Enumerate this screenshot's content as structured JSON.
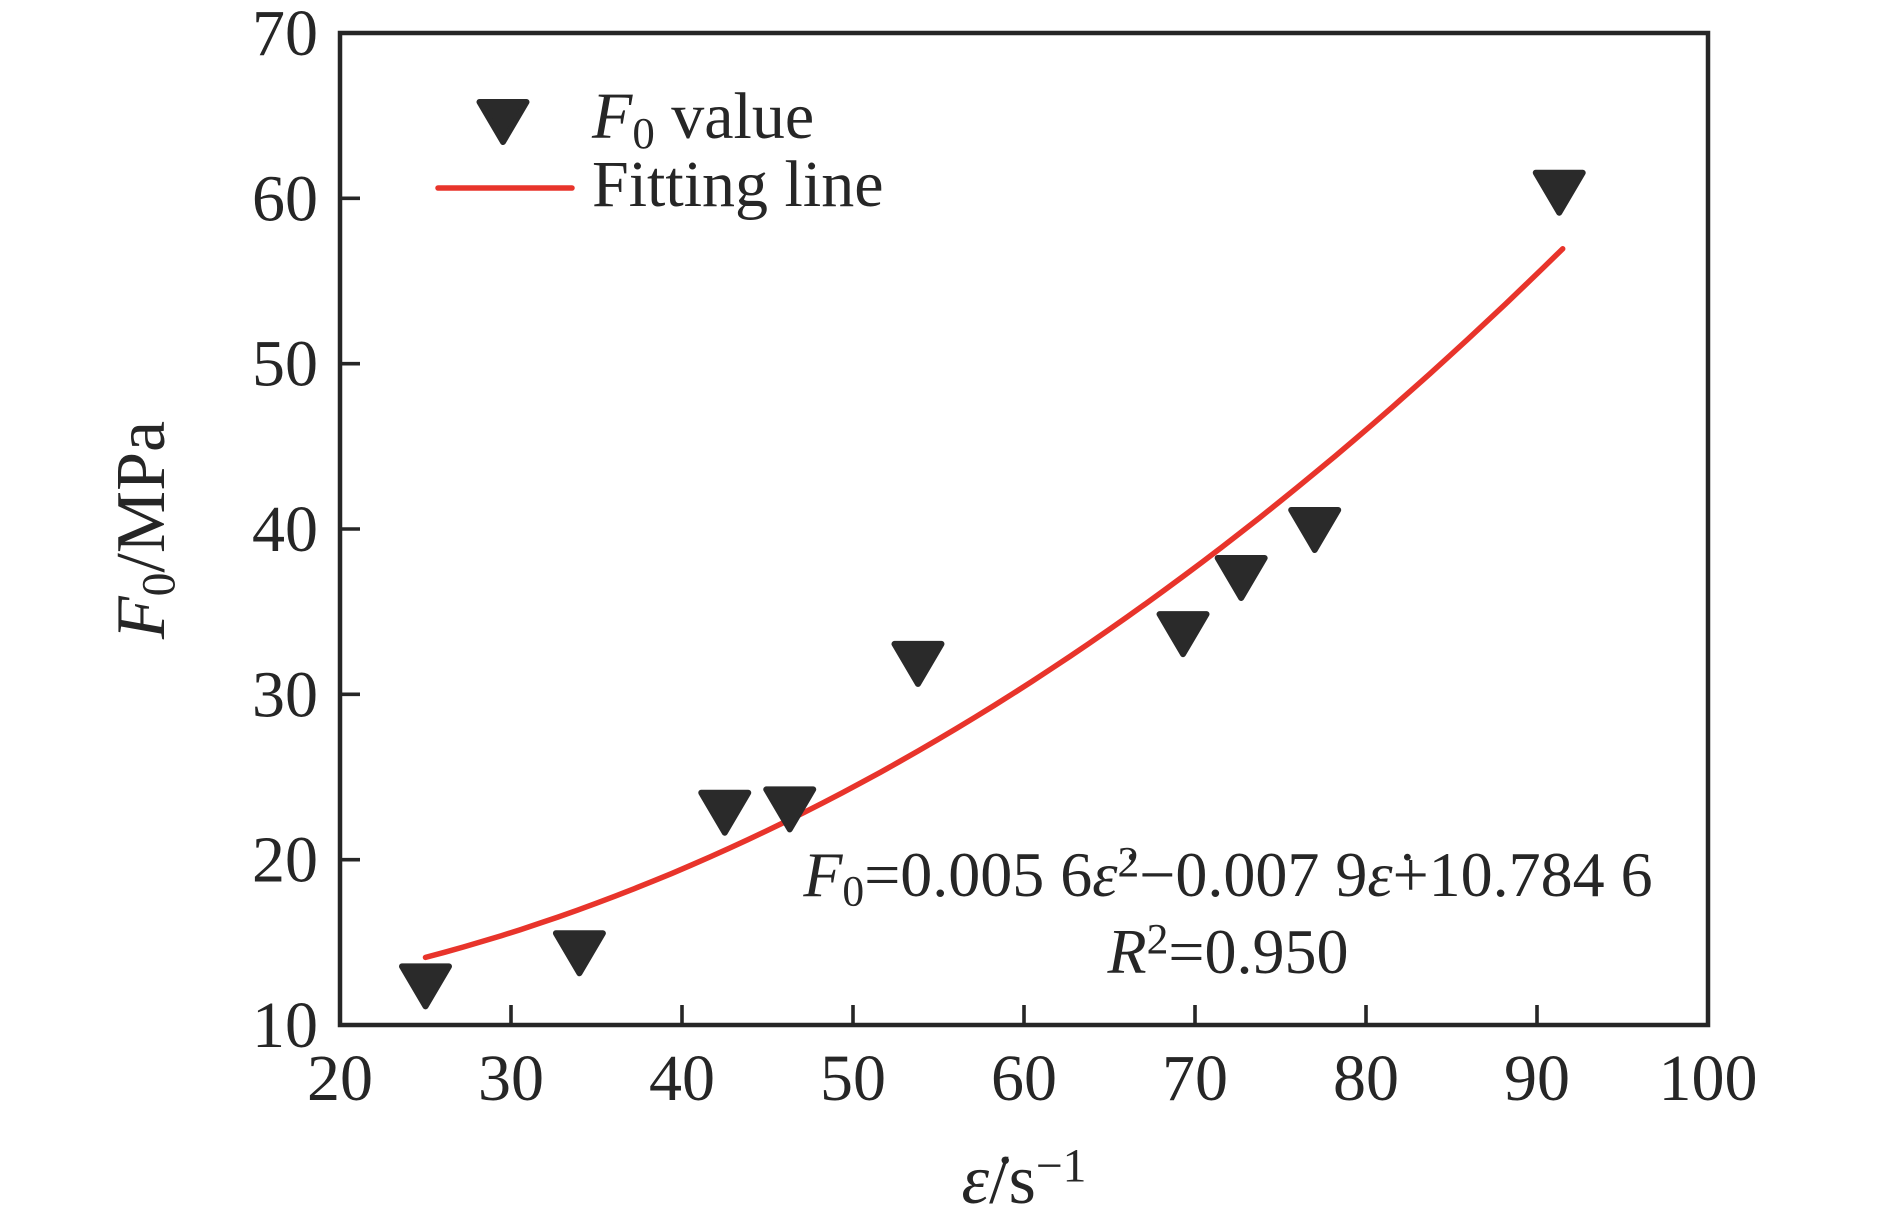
{
  "figure": {
    "background": "#ffffff"
  },
  "colors": {
    "axis": "#262626",
    "marker": "#2a2a2a",
    "fit_line": "#e8342b",
    "text": "#262626"
  },
  "labels": {
    "y_axis": [
      {
        "t": "F",
        "i": 1
      },
      {
        "t": "0",
        "sub": 1
      },
      {
        "t": "/MPa"
      }
    ],
    "x_axis": [
      {
        "t": "ε̇",
        "i": 1
      },
      {
        "t": "/s"
      },
      {
        "t": "−1",
        "sup": 1
      }
    ]
  },
  "legend": {
    "items": [
      {
        "marker": "triangle-down",
        "label": "F0 value",
        "runs": [
          {
            "t": "F",
            "i": 1
          },
          {
            "t": "0",
            "sub": 1
          },
          {
            "t": " value"
          }
        ]
      },
      {
        "marker": "red-line",
        "label": "Fitting line",
        "runs": [
          {
            "t": "Fitting line"
          }
        ]
      }
    ]
  },
  "annotation": {
    "line1_runs": [
      {
        "t": "F",
        "i": 1
      },
      {
        "t": "0",
        "sub": 1
      },
      {
        "t": "=0.005 6"
      },
      {
        "t": "ε̇",
        "i": 1
      },
      {
        "t": "2",
        "sup": 1
      },
      {
        "t": "−0.007 9"
      },
      {
        "t": "ε̇",
        "i": 1
      },
      {
        "t": "+10.784 6"
      }
    ],
    "line2_runs": [
      {
        "t": "R",
        "i": 1
      },
      {
        "t": "2",
        "sup": 1
      },
      {
        "t": "=0.950"
      }
    ]
  },
  "chart_data": {
    "type": "scatter",
    "title": "",
    "xlabel": "ε̇/s⁻¹",
    "ylabel": "F₀/MPa",
    "xlim": [
      20,
      100
    ],
    "ylim": [
      10,
      70
    ],
    "x_ticks": [
      20,
      30,
      40,
      50,
      60,
      70,
      80,
      90,
      100
    ],
    "y_ticks": [
      10,
      20,
      30,
      40,
      50,
      60,
      70
    ],
    "grid": false,
    "legend_position": "upper-left-inside",
    "series": [
      {
        "name": "F0 value",
        "type": "scatter",
        "marker": "triangle-down",
        "color": "#2a2a2a",
        "points": [
          [
            25,
            12.4
          ],
          [
            34,
            14.4
          ],
          [
            42.5,
            22.9
          ],
          [
            46.3,
            23.1
          ],
          [
            53.8,
            31.9
          ],
          [
            69.3,
            33.7
          ],
          [
            72.7,
            37.1
          ],
          [
            77,
            40.0
          ],
          [
            91.3,
            60.4
          ]
        ]
      },
      {
        "name": "Fitting line",
        "type": "line",
        "color": "#e8342b",
        "fit": {
          "kind": "quadratic",
          "a": 0.0056,
          "b": -0.0079,
          "c": 10.7846
        },
        "x_range": [
          25,
          91.5
        ]
      }
    ],
    "equation_text": "F0=0.005 6ε̇²−0.007 9ε̇+10.784 6",
    "r_squared": "R²=0.950"
  }
}
